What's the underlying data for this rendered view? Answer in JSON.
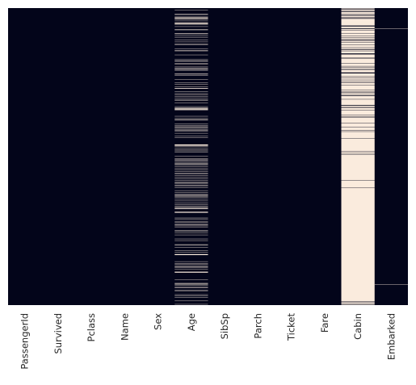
{
  "chart_data": {
    "type": "heatmap",
    "title": "",
    "xlabel": "",
    "ylabel": "",
    "categories": [
      "PassengerId",
      "Survived",
      "Pclass",
      "Name",
      "Sex",
      "Age",
      "SibSp",
      "Parch",
      "Ticket",
      "Fare",
      "Cabin",
      "Embarked"
    ],
    "n_rows": 891,
    "value_meaning": "missing (true = light, false = dark)",
    "colors": {
      "false": "#03051a",
      "true": "#faebdd"
    },
    "colorbar": false,
    "y_tick_labels": false,
    "missing_rows": {
      "PassengerId": [],
      "Survived": [],
      "Pclass": [],
      "Name": [],
      "Sex": [],
      "Age": [
        5,
        17,
        19,
        26,
        28,
        29,
        31,
        32,
        36,
        42,
        45,
        46,
        47,
        48,
        55,
        64,
        65,
        76,
        77,
        82,
        87,
        95,
        101,
        107,
        109,
        121,
        126,
        128,
        140,
        154,
        158,
        159,
        166,
        168,
        176,
        180,
        181,
        185,
        186,
        196,
        198,
        201,
        214,
        223,
        229,
        235,
        240,
        241,
        250,
        256,
        260,
        264,
        270,
        274,
        277,
        284,
        295,
        298,
        300,
        301,
        303,
        304,
        306,
        324,
        330,
        334,
        335,
        347,
        351,
        354,
        358,
        359,
        364,
        367,
        368,
        375,
        384,
        388,
        409,
        410,
        411,
        413,
        415,
        420,
        425,
        428,
        431,
        444,
        451,
        454,
        457,
        459,
        464,
        466,
        468,
        470,
        475,
        481,
        485,
        490,
        495,
        497,
        502,
        507,
        511,
        517,
        522,
        524,
        527,
        531,
        533,
        538,
        547,
        552,
        557,
        560,
        563,
        564,
        568,
        573,
        578,
        584,
        589,
        593,
        596,
        598,
        601,
        602,
        611,
        612,
        613,
        629,
        633,
        639,
        643,
        648,
        650,
        653,
        656,
        667,
        669,
        674,
        680,
        692,
        697,
        709,
        711,
        718,
        727,
        732,
        738,
        739,
        740,
        760,
        766,
        768,
        773,
        776,
        778,
        783,
        790,
        792,
        793,
        815,
        825,
        826,
        828,
        832,
        837,
        839,
        846,
        849,
        859,
        863,
        868,
        878,
        888
      ],
      "Cabin": [
        0,
        2,
        4,
        5,
        7,
        8,
        9,
        12,
        13,
        14,
        15,
        16,
        17,
        19,
        20,
        22,
        24,
        25,
        26,
        28,
        29,
        32,
        33,
        34,
        35,
        36,
        37,
        38,
        39,
        40,
        41,
        42,
        43,
        44,
        45,
        46,
        47,
        48,
        49,
        50,
        51,
        53,
        56,
        57,
        58,
        59,
        60,
        63,
        64,
        65,
        67,
        68,
        69,
        70,
        71,
        72,
        73,
        74,
        76,
        77,
        78,
        79,
        80,
        81,
        82,
        84,
        85,
        86,
        87,
        89,
        90,
        91,
        93,
        94,
        95,
        98,
        99,
        100,
        101,
        103,
        104,
        105,
        106,
        107,
        108,
        109,
        111,
        112,
        113,
        114,
        115,
        116,
        117,
        119,
        120,
        121,
        122,
        125,
        126,
        127,
        129,
        130,
        131,
        132,
        133,
        134,
        135,
        138,
        140,
        141,
        142,
        143,
        144,
        145,
        146,
        147,
        149,
        150,
        152,
        153,
        154,
        155,
        156,
        157,
        158,
        159,
        160,
        161,
        162,
        163,
        164,
        165,
        167,
        168,
        169,
        170,
        171,
        172,
        173,
        175,
        176,
        178,
        179,
        180,
        181,
        182,
        184,
        186,
        187,
        188,
        189,
        190,
        191,
        192,
        196,
        197,
        198,
        199,
        200,
        201,
        202,
        203,
        204,
        206,
        207,
        208,
        210,
        211,
        212,
        213,
        214,
        216,
        217,
        218,
        219,
        221,
        222,
        223,
        225,
        226,
        227,
        228,
        229,
        230,
        232,
        233,
        234,
        235,
        236,
        237,
        238,
        239,
        240,
        241,
        242,
        243,
        244,
        246,
        247,
        248,
        249,
        250,
        253,
        254,
        255,
        256,
        258,
        259,
        260,
        261,
        264,
        265,
        266,
        267,
        268,
        269,
        270,
        271,
        272,
        274,
        275,
        276,
        277,
        278,
        279,
        280,
        281,
        282,
        283,
        284,
        285,
        286,
        287,
        288,
        289,
        290,
        293,
        294,
        295,
        296,
        298,
        300,
        301,
        302,
        303,
        304,
        305,
        307,
        308,
        309,
        310,
        311,
        312,
        313,
        314,
        315,
        316,
        317,
        318,
        319,
        320,
        322,
        323,
        324,
        326,
        328,
        329,
        330,
        331,
        332,
        333,
        334,
        335,
        336,
        337,
        338,
        339,
        340,
        341,
        342,
        343,
        345,
        346,
        347,
        348,
        349,
        350,
        351,
        352,
        353,
        354,
        355,
        357,
        358,
        359,
        360,
        361,
        362,
        363,
        364,
        365,
        367,
        368,
        369,
        371,
        372,
        373,
        374,
        375,
        376,
        377,
        378,
        379,
        380,
        381,
        382,
        383,
        384,
        385,
        386,
        387,
        388,
        389,
        391,
        392,
        393,
        394,
        395,
        396,
        397,
        398,
        399,
        400,
        401,
        402,
        403,
        404,
        405,
        406,
        407,
        408,
        409,
        410,
        411,
        412,
        413,
        414,
        415,
        416,
        417,
        418,
        419,
        420,
        421,
        422,
        423,
        424,
        425,
        426,
        427,
        428,
        429,
        431,
        432,
        433,
        434,
        436,
        437,
        438,
        440,
        441,
        442,
        443,
        444,
        445,
        446,
        447,
        448,
        449,
        450,
        451,
        452,
        453,
        454,
        455,
        456,
        457,
        458,
        459,
        460,
        461,
        462,
        463,
        464,
        465,
        466,
        467,
        468,
        469,
        470,
        471,
        472,
        473,
        474,
        475,
        476,
        477,
        478,
        479,
        480,
        481,
        482,
        483,
        484,
        485,
        486,
        487,
        488,
        489,
        490,
        491,
        492,
        493,
        494,
        495,
        496,
        497,
        498,
        499,
        500,
        501,
        502,
        503,
        504,
        505,
        506,
        507,
        508,
        509,
        510,
        511,
        512,
        513,
        514,
        515,
        517,
        518,
        519,
        520,
        521,
        522,
        523,
        524,
        525,
        526,
        527,
        528,
        529,
        530,
        531,
        532,
        533,
        534,
        535,
        536,
        537,
        538,
        540,
        541,
        542,
        543,
        544,
        545,
        546,
        547,
        548,
        549,
        550,
        551,
        552,
        553,
        554,
        555,
        556,
        557,
        558,
        559,
        560,
        561,
        562,
        563,
        564,
        565,
        566,
        567,
        568,
        569,
        570,
        571,
        572,
        573,
        574,
        575,
        576,
        577,
        578,
        579,
        580,
        581,
        582,
        583,
        584,
        585,
        586,
        587,
        588,
        589,
        590,
        591,
        592,
        593,
        594,
        595,
        596,
        597,
        598,
        599,
        600,
        601,
        602,
        603,
        604,
        605,
        606,
        607,
        608,
        609,
        610,
        611,
        612,
        613,
        614,
        615,
        616,
        617,
        618,
        619,
        620,
        621,
        622,
        623,
        624,
        625,
        626,
        627,
        628,
        629,
        630,
        631,
        632,
        633,
        634,
        635,
        636,
        637,
        638,
        639,
        640,
        641,
        642,
        643,
        644,
        645,
        646,
        647,
        648,
        649,
        650,
        651,
        652,
        653,
        654,
        655,
        656,
        657,
        658,
        659,
        660,
        661,
        662,
        663,
        664,
        665,
        666,
        667,
        668,
        669,
        670,
        671,
        672,
        673,
        674,
        675,
        676,
        677,
        678,
        679,
        680,
        681,
        682,
        683,
        684,
        685,
        686,
        687,
        688,
        689,
        690,
        691,
        692,
        693,
        694,
        695,
        696,
        697,
        698,
        699,
        700,
        701,
        702,
        703,
        704,
        705,
        706,
        707,
        708,
        709,
        710,
        711,
        712,
        713,
        714,
        715,
        716,
        717,
        718,
        719,
        720,
        721,
        722,
        723,
        724,
        725,
        726,
        727,
        728,
        729,
        730,
        731,
        732,
        733,
        734,
        735,
        736,
        737,
        738,
        739,
        740,
        741,
        742,
        743,
        744,
        745,
        746,
        747,
        748,
        749,
        750,
        751,
        752,
        753,
        754,
        755,
        756,
        757,
        758,
        759,
        760,
        761,
        762,
        763,
        764,
        765,
        766,
        767,
        768,
        769,
        770,
        771,
        772,
        773,
        774,
        775,
        776,
        777,
        778,
        779,
        780,
        781,
        782,
        783,
        784,
        785,
        786,
        787,
        788,
        789,
        790,
        791,
        792,
        793,
        794,
        795,
        796,
        797,
        798,
        799,
        800,
        801,
        802,
        803,
        804,
        805,
        806,
        807,
        808,
        809,
        810,
        811,
        812,
        813,
        814,
        815,
        816,
        817,
        818,
        819,
        820,
        821,
        822,
        823,
        824,
        825,
        826,
        827,
        828,
        829,
        830,
        831,
        832,
        833,
        834,
        835,
        836,
        837,
        838,
        839,
        840,
        841,
        842,
        843,
        844,
        845,
        846,
        847,
        848,
        849,
        850,
        851,
        852,
        853,
        854,
        855,
        856,
        857,
        858,
        859,
        860,
        861,
        862,
        863,
        864,
        865,
        866,
        867,
        868,
        869,
        870,
        871,
        872,
        873,
        874,
        875,
        876,
        877,
        878,
        880,
        881,
        883,
        884,
        885,
        886,
        888,
        890
      ],
      "Embarked": [
        61,
        829
      ]
    }
  }
}
